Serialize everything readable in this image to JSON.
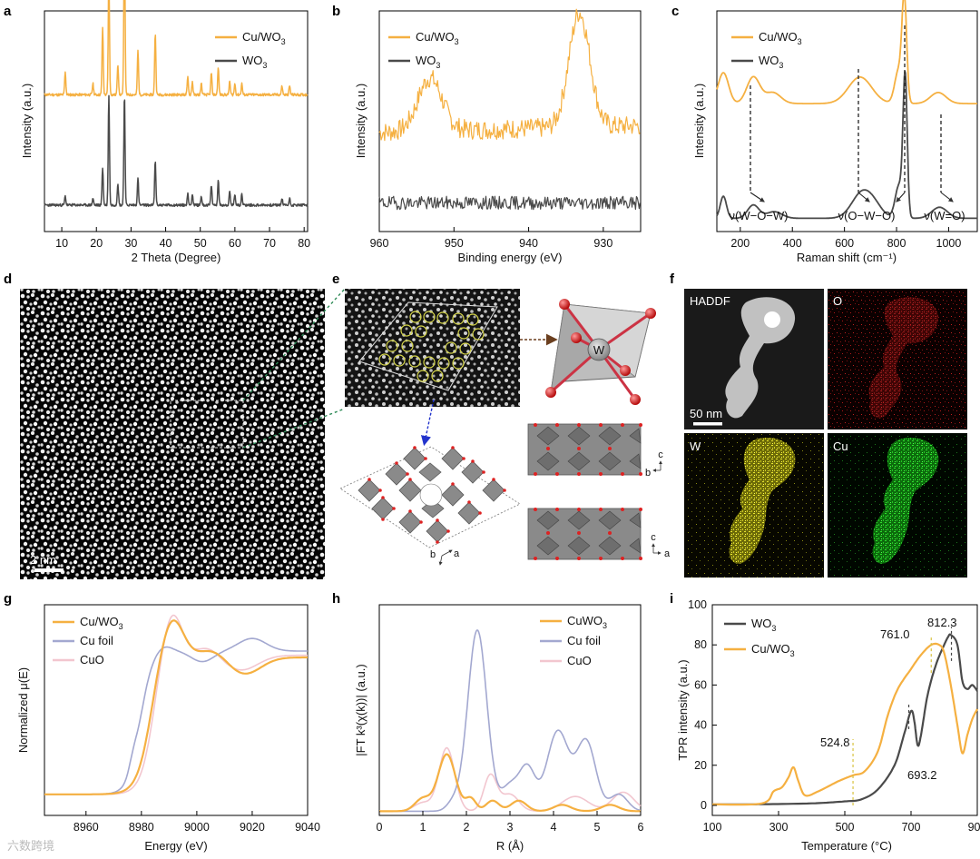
{
  "colors": {
    "cu_wo3": "#f5b041",
    "wo3": "#4a4a4a",
    "cu_foil": "#a3a8d0",
    "cuo": "#f2c6cf",
    "frame": "#000000"
  },
  "chart_data": [
    {
      "id": "a",
      "type": "line",
      "panel_letter": "a",
      "xlabel": "2 Theta (Degree)",
      "ylabel": "Intensity (a.u.)",
      "xlim": [
        5,
        81
      ],
      "xticks": [
        "10",
        "20",
        "30",
        "40",
        "50",
        "60",
        "70",
        "80"
      ],
      "series": [
        {
          "name": "Cu/WO3",
          "legend_main": "Cu/WO",
          "legend_sub": "3",
          "baseline": 0.62,
          "peaks": [
            [
              11,
              0.1
            ],
            [
              19,
              0.05
            ],
            [
              21.8,
              0.3
            ],
            [
              23.6,
              0.55
            ],
            [
              26.2,
              0.14
            ],
            [
              28.1,
              0.78
            ],
            [
              32,
              0.2
            ],
            [
              37,
              0.28
            ],
            [
              46.4,
              0.08
            ],
            [
              47.7,
              0.06
            ],
            [
              50.3,
              0.05
            ],
            [
              53.2,
              0.1
            ],
            [
              55.2,
              0.12
            ],
            [
              58.5,
              0.06
            ],
            [
              60,
              0.05
            ],
            [
              62,
              0.05
            ],
            [
              73.6,
              0.04
            ],
            [
              75.8,
              0.04
            ]
          ]
        },
        {
          "name": "WO3",
          "legend_main": "WO",
          "legend_sub": "3",
          "baseline": 0.12,
          "peaks": [
            [
              11,
              0.04
            ],
            [
              19,
              0.03
            ],
            [
              21.8,
              0.17
            ],
            [
              23.6,
              0.5
            ],
            [
              26.2,
              0.1
            ],
            [
              28.1,
              0.5
            ],
            [
              32,
              0.12
            ],
            [
              37,
              0.2
            ],
            [
              46.4,
              0.05
            ],
            [
              47.7,
              0.05
            ],
            [
              50.3,
              0.04
            ],
            [
              53.2,
              0.09
            ],
            [
              55.2,
              0.11
            ],
            [
              58.5,
              0.06
            ],
            [
              60,
              0.05
            ],
            [
              62,
              0.05
            ],
            [
              73.6,
              0.03
            ],
            [
              75.8,
              0.03
            ]
          ]
        }
      ]
    },
    {
      "id": "b",
      "type": "line",
      "panel_letter": "b",
      "xlabel": "Binding energy (eV)",
      "ylabel": "Intensity (a.u.)",
      "xlim": [
        960,
        925
      ],
      "xticks": [
        "960",
        "950",
        "940",
        "930"
      ],
      "series": [
        {
          "name": "Cu/WO3",
          "legend_main": "Cu/WO",
          "legend_sub": "3",
          "baseline": 0.45,
          "peaks": [
            [
              953.2,
              0.24,
              1.6
            ],
            [
              933.2,
              0.52,
              1.4
            ]
          ]
        },
        {
          "name": "WO3",
          "legend_main": "WO",
          "legend_sub": "3",
          "baseline": 0.13,
          "peaks": []
        }
      ]
    },
    {
      "id": "c",
      "type": "line",
      "panel_letter": "c",
      "xlabel": "Raman shift (cm⁻¹)",
      "ylabel": "Intensity (a.u.)",
      "xlim": [
        110,
        1110
      ],
      "xticks": [
        "200",
        "400",
        "600",
        "800",
        "1000"
      ],
      "series": [
        {
          "name": "Cu/WO3",
          "legend_main": "Cu/WO",
          "legend_sub": "3",
          "baseline": 0.58,
          "peaks": [
            [
              135,
              0.14,
              20
            ],
            [
              250,
              0.12,
              25
            ],
            [
              325,
              0.05,
              30
            ],
            [
              660,
              0.12,
              45
            ],
            [
              808,
              0.15,
              15
            ],
            [
              830,
              0.45,
              9
            ],
            [
              960,
              0.05,
              30
            ]
          ]
        },
        {
          "name": "WO3",
          "legend_main": "WO",
          "legend_sub": "3",
          "baseline": 0.06,
          "peaks": [
            [
              135,
              0.1,
              12
            ],
            [
              250,
              0.06,
              22
            ],
            [
              330,
              0.03,
              30
            ],
            [
              670,
              0.12,
              40
            ],
            [
              720,
              0.03,
              30
            ],
            [
              810,
              0.15,
              15
            ],
            [
              833,
              0.62,
              8
            ],
            [
              965,
              0.05,
              30
            ]
          ]
        }
      ],
      "annotations": [
        "ν(W−O−W)",
        "ν(O−W−O)",
        "ν(W=O)"
      ]
    },
    {
      "id": "g",
      "type": "line",
      "panel_letter": "g",
      "xlabel": "Energy (eV)",
      "ylabel": "Normalized μ(E)",
      "xlim": [
        8945,
        9040
      ],
      "xticks": [
        "8960",
        "8980",
        "9000",
        "9020",
        "9040"
      ],
      "series": [
        {
          "name": "Cu/WO3",
          "legend_main": "Cu/WO",
          "legend_sub": "3"
        },
        {
          "name": "Cu foil",
          "legend_main": "Cu foil",
          "legend_sub": ""
        },
        {
          "name": "CuO",
          "legend_main": "CuO",
          "legend_sub": ""
        }
      ]
    },
    {
      "id": "h",
      "type": "line",
      "panel_letter": "h",
      "xlabel": "R (Å)",
      "ylabel": "|FT k³(χ(k))| (a.u.)",
      "xlim": [
        0,
        6
      ],
      "xticks": [
        "0",
        "1",
        "2",
        "3",
        "4",
        "5",
        "6"
      ],
      "series": [
        {
          "name": "CuWO3",
          "legend_main": "CuWO",
          "legend_sub": "3"
        },
        {
          "name": "Cu foil",
          "legend_main": "Cu foil",
          "legend_sub": ""
        },
        {
          "name": "CuO",
          "legend_main": "CuO",
          "legend_sub": ""
        }
      ]
    },
    {
      "id": "i",
      "type": "line",
      "panel_letter": "i",
      "xlabel": "Temperature (°C)",
      "ylabel": "TPR intensity (a.u.)",
      "xlim": [
        100,
        900
      ],
      "ylim": [
        -5,
        100
      ],
      "xticks": [
        "100",
        "300",
        "500",
        "700",
        "900"
      ],
      "yticks": [
        "0",
        "20",
        "40",
        "60",
        "80",
        "100"
      ],
      "series": [
        {
          "name": "WO3",
          "legend_main": "WO",
          "legend_sub": "3",
          "points": [
            [
              100,
              0.5
            ],
            [
              200,
              0.5
            ],
            [
              260,
              0.6
            ],
            [
              400,
              1
            ],
            [
              500,
              2
            ],
            [
              550,
              3
            ],
            [
              600,
              8
            ],
            [
              650,
              20
            ],
            [
              680,
              36
            ],
            [
              700,
              47
            ],
            [
              710,
              42
            ],
            [
              720,
              30
            ],
            [
              730,
              35
            ],
            [
              750,
              55
            ],
            [
              775,
              70
            ],
            [
              800,
              80
            ],
            [
              812,
              84
            ],
            [
              820,
              85
            ],
            [
              840,
              80
            ],
            [
              855,
              62
            ],
            [
              870,
              58
            ],
            [
              885,
              60
            ],
            [
              900,
              57
            ]
          ]
        },
        {
          "name": "Cu/WO3",
          "legend_main": "Cu/WO",
          "legend_sub": "3",
          "points": [
            [
              100,
              0.5
            ],
            [
              250,
              1
            ],
            [
              285,
              7
            ],
            [
              310,
              9
            ],
            [
              330,
              14
            ],
            [
              345,
              19
            ],
            [
              360,
              12
            ],
            [
              380,
              5
            ],
            [
              420,
              7
            ],
            [
              480,
              12
            ],
            [
              524.8,
              15
            ],
            [
              560,
              17
            ],
            [
              600,
              27
            ],
            [
              630,
              45
            ],
            [
              660,
              58
            ],
            [
              700,
              68
            ],
            [
              730,
              75
            ],
            [
              761,
              80
            ],
            [
              785,
              80
            ],
            [
              800,
              76
            ],
            [
              820,
              60
            ],
            [
              840,
              40
            ],
            [
              855,
              26
            ],
            [
              870,
              35
            ],
            [
              885,
              43
            ],
            [
              900,
              48
            ]
          ]
        }
      ],
      "annotations": [
        "524.8",
        "693.2",
        "761.0",
        "812.3"
      ]
    }
  ],
  "images": {
    "d": {
      "panel_letter": "d",
      "scale_label": "2 nm"
    },
    "e": {
      "panel_letter": "e",
      "atom_label": "W",
      "axes_top": [
        "c",
        "b"
      ],
      "axes_bottom": [
        "c",
        "a"
      ],
      "axes_poly": [
        "b",
        "a"
      ]
    },
    "f": {
      "panel_letter": "f",
      "labels": [
        "HADDF",
        "O",
        "W",
        "Cu"
      ],
      "scale_label": "50 nm"
    }
  },
  "watermark": "六数跨境"
}
